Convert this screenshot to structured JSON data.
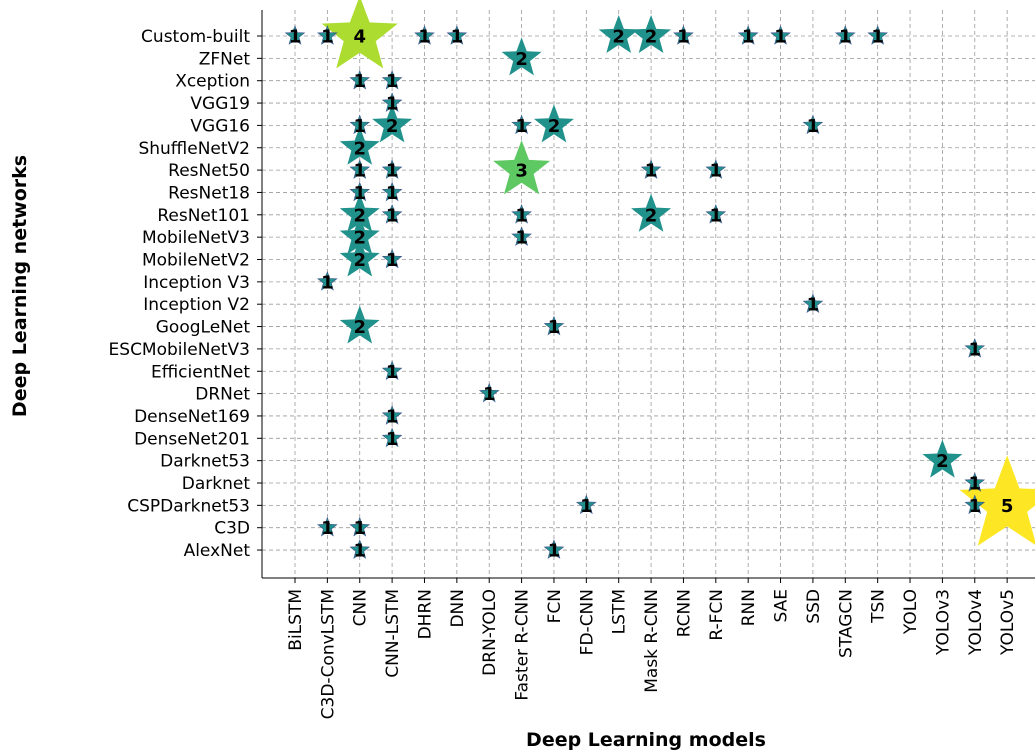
{
  "chart_data": {
    "type": "scatter",
    "xlabel": "Deep Learning models",
    "ylabel": "Deep Learning networks",
    "x_categories": [
      "BiLSTM",
      "C3D-ConvLSTM",
      "CNN",
      "CNN-LSTM",
      "DHRN",
      "DNN",
      "DRN-YOLO",
      "Faster R-CNN",
      "FCN",
      "FD-CNN",
      "LSTM",
      "Mask R-CNN",
      "RCNN",
      "R-FCN",
      "RNN",
      "SAE",
      "SSD",
      "STAGCN",
      "TSN",
      "YOLO",
      "YOLOv3",
      "YOLOv4",
      "YOLOv5"
    ],
    "y_categories": [
      "Custom-built",
      "ZFNet",
      "Xception",
      "VGG19",
      "VGG16",
      "ShuffleNetV2",
      "ResNet50",
      "ResNet18",
      "ResNet101",
      "MobileNetV3",
      "MobileNetV2",
      "Inception V3",
      "Inception V2",
      "GoogLeNet",
      "ESCMobileNetV3",
      "EfficientNet",
      "DRNet",
      "DenseNet169",
      "DenseNet201",
      "Darknet53",
      "Darknet",
      "CSPDarknet53",
      "C3D",
      "AlexNet"
    ],
    "points": [
      {
        "x": "BiLSTM",
        "y": "Custom-built",
        "value": 1
      },
      {
        "x": "C3D-ConvLSTM",
        "y": "Custom-built",
        "value": 1
      },
      {
        "x": "CNN",
        "y": "Custom-built",
        "value": 4
      },
      {
        "x": "DHRN",
        "y": "Custom-built",
        "value": 1
      },
      {
        "x": "DNN",
        "y": "Custom-built",
        "value": 1
      },
      {
        "x": "LSTM",
        "y": "Custom-built",
        "value": 2
      },
      {
        "x": "Mask R-CNN",
        "y": "Custom-built",
        "value": 2
      },
      {
        "x": "RCNN",
        "y": "Custom-built",
        "value": 1
      },
      {
        "x": "RNN",
        "y": "Custom-built",
        "value": 1
      },
      {
        "x": "SAE",
        "y": "Custom-built",
        "value": 1
      },
      {
        "x": "STAGCN",
        "y": "Custom-built",
        "value": 1
      },
      {
        "x": "TSN",
        "y": "Custom-built",
        "value": 1
      },
      {
        "x": "Faster R-CNN",
        "y": "ZFNet",
        "value": 2
      },
      {
        "x": "CNN",
        "y": "Xception",
        "value": 1
      },
      {
        "x": "CNN-LSTM",
        "y": "Xception",
        "value": 1
      },
      {
        "x": "CNN-LSTM",
        "y": "VGG19",
        "value": 1
      },
      {
        "x": "CNN",
        "y": "VGG16",
        "value": 1
      },
      {
        "x": "CNN-LSTM",
        "y": "VGG16",
        "value": 2
      },
      {
        "x": "Faster R-CNN",
        "y": "VGG16",
        "value": 1
      },
      {
        "x": "FCN",
        "y": "VGG16",
        "value": 2
      },
      {
        "x": "SSD",
        "y": "VGG16",
        "value": 1
      },
      {
        "x": "CNN",
        "y": "ShuffleNetV2",
        "value": 2
      },
      {
        "x": "CNN",
        "y": "ResNet50",
        "value": 1
      },
      {
        "x": "CNN-LSTM",
        "y": "ResNet50",
        "value": 1
      },
      {
        "x": "Faster R-CNN",
        "y": "ResNet50",
        "value": 3
      },
      {
        "x": "Mask R-CNN",
        "y": "ResNet50",
        "value": 1
      },
      {
        "x": "R-FCN",
        "y": "ResNet50",
        "value": 1
      },
      {
        "x": "CNN",
        "y": "ResNet18",
        "value": 1
      },
      {
        "x": "CNN-LSTM",
        "y": "ResNet18",
        "value": 1
      },
      {
        "x": "CNN",
        "y": "ResNet101",
        "value": 2
      },
      {
        "x": "CNN-LSTM",
        "y": "ResNet101",
        "value": 1
      },
      {
        "x": "Faster R-CNN",
        "y": "ResNet101",
        "value": 1
      },
      {
        "x": "Mask R-CNN",
        "y": "ResNet101",
        "value": 2
      },
      {
        "x": "R-FCN",
        "y": "ResNet101",
        "value": 1
      },
      {
        "x": "CNN",
        "y": "MobileNetV3",
        "value": 2
      },
      {
        "x": "Faster R-CNN",
        "y": "MobileNetV3",
        "value": 1
      },
      {
        "x": "CNN",
        "y": "MobileNetV2",
        "value": 2
      },
      {
        "x": "CNN-LSTM",
        "y": "MobileNetV2",
        "value": 1
      },
      {
        "x": "C3D-ConvLSTM",
        "y": "Inception V3",
        "value": 1
      },
      {
        "x": "SSD",
        "y": "Inception V2",
        "value": 1
      },
      {
        "x": "CNN",
        "y": "GoogLeNet",
        "value": 2
      },
      {
        "x": "FCN",
        "y": "GoogLeNet",
        "value": 1
      },
      {
        "x": "YOLOv4",
        "y": "ESCMobileNetV3",
        "value": 1
      },
      {
        "x": "CNN-LSTM",
        "y": "EfficientNet",
        "value": 1
      },
      {
        "x": "DRN-YOLO",
        "y": "DRNet",
        "value": 1
      },
      {
        "x": "CNN-LSTM",
        "y": "DenseNet169",
        "value": 1
      },
      {
        "x": "CNN-LSTM",
        "y": "DenseNet201",
        "value": 1
      },
      {
        "x": "YOLOv3",
        "y": "Darknet53",
        "value": 2
      },
      {
        "x": "YOLOv4",
        "y": "Darknet",
        "value": 1
      },
      {
        "x": "FD-CNN",
        "y": "CSPDarknet53",
        "value": 1
      },
      {
        "x": "YOLOv4",
        "y": "CSPDarknet53",
        "value": 1
      },
      {
        "x": "YOLOv5",
        "y": "CSPDarknet53",
        "value": 5
      },
      {
        "x": "C3D-ConvLSTM",
        "y": "C3D",
        "value": 1
      },
      {
        "x": "CNN",
        "y": "C3D",
        "value": 1
      },
      {
        "x": "CNN",
        "y": "AlexNet",
        "value": 1
      },
      {
        "x": "FCN",
        "y": "AlexNet",
        "value": 1
      }
    ],
    "marker": "star",
    "colormap": [
      "#3b528b",
      "#21918c",
      "#5ec962",
      "#fde725"
    ],
    "grid": true,
    "legend": "none"
  }
}
